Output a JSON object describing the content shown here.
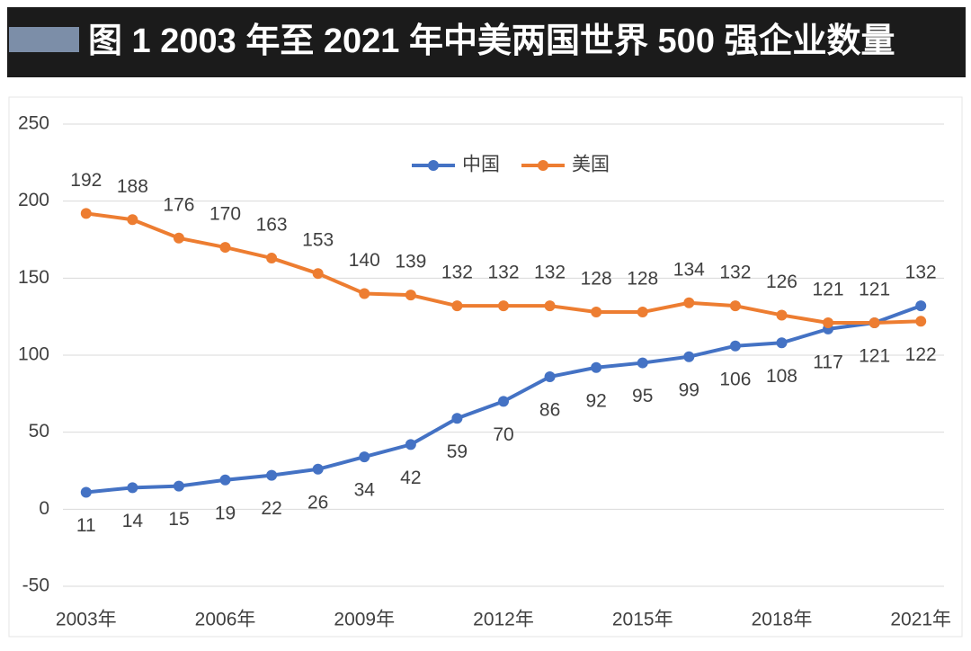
{
  "chart_data": {
    "type": "line",
    "title": "图 1  2003 年至 2021 年中美两国世界 500 强企业数量",
    "categories": [
      "2003年",
      null,
      null,
      "2006年",
      null,
      null,
      "2009年",
      null,
      null,
      "2012年",
      null,
      null,
      "2015年",
      null,
      null,
      "2018年",
      null,
      null,
      "2021年"
    ],
    "series": [
      {
        "name": "中国",
        "color": "#4472c4",
        "values": [
          11,
          14,
          15,
          19,
          22,
          26,
          34,
          42,
          59,
          70,
          86,
          92,
          95,
          99,
          106,
          108,
          117,
          121,
          132
        ]
      },
      {
        "name": "美国",
        "color": "#ed7d31",
        "values": [
          192,
          188,
          176,
          170,
          163,
          153,
          140,
          139,
          132,
          132,
          132,
          128,
          128,
          134,
          132,
          126,
          121,
          121,
          122
        ]
      }
    ],
    "ylim": [
      -50,
      250
    ],
    "yticks": [
      -50,
      0,
      50,
      100,
      150,
      200,
      250
    ],
    "grid": true,
    "legend": "top"
  }
}
